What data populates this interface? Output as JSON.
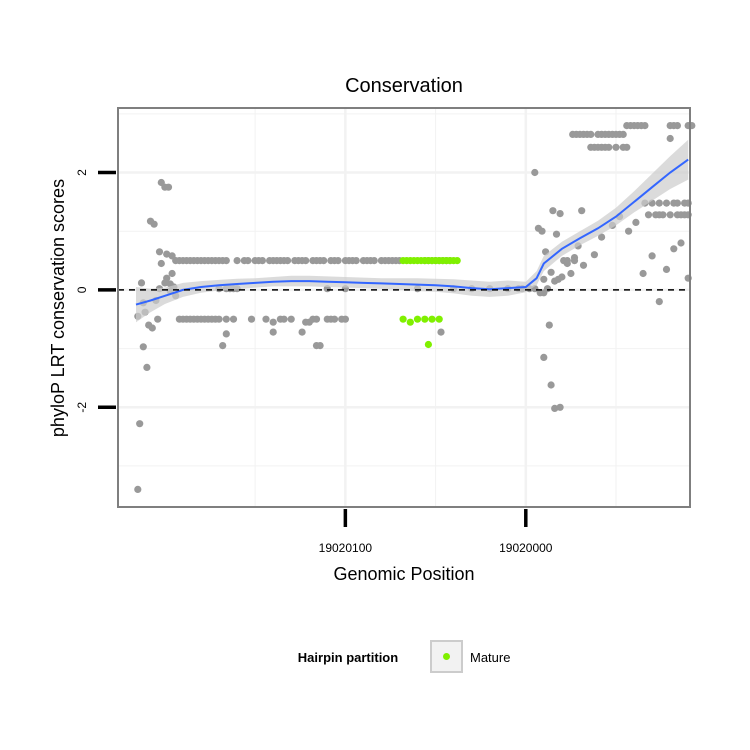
{
  "chart_data": {
    "type": "scatter",
    "title": "Conservation",
    "xlabel": "Genomic Position",
    "ylabel": "phyloP LRT conservation scores",
    "x_reversed": true,
    "xlim": [
      19020226,
      19019909
    ],
    "ylim": [
      -3.7,
      3.1
    ],
    "x_ticks": [
      19020100,
      19020000
    ],
    "x_tick_labels": [
      "19020100",
      "19020000"
    ],
    "y_ticks": [
      -2,
      0,
      2
    ],
    "y_tick_labels": [
      "-2",
      "0",
      "2"
    ],
    "reference_line": {
      "y": 0,
      "style": "dashed",
      "color": "#000000"
    },
    "grid": true,
    "legend": {
      "title": "Hairpin partition",
      "position": "bottom",
      "entries": [
        {
          "label": "Mature",
          "color": "#80f000"
        }
      ]
    },
    "colors": {
      "other_points": "#999999",
      "mature_points": "#80f000",
      "smooth_line": "#3366ff",
      "confidence_band": "#cccccc",
      "panel_border": "#7f7f7f",
      "grid": "#f2f2f2"
    },
    "series": [
      {
        "name": "",
        "color": "#999999",
        "points": [
          [
            19020215,
            -3.4
          ],
          [
            19020214,
            -2.28
          ],
          [
            19020212,
            -0.97
          ],
          [
            19020210,
            -1.32
          ],
          [
            19020215,
            -0.45
          ],
          [
            19020213,
            0.12
          ],
          [
            19020212,
            -0.22
          ],
          [
            19020211,
            -0.38
          ],
          [
            19020209,
            -0.6
          ],
          [
            19020208,
            1.17
          ],
          [
            19020207,
            -0.65
          ],
          [
            19020206,
            1.12
          ],
          [
            19020205,
            -0.18
          ],
          [
            19020204,
            -0.5
          ],
          [
            19020203,
            0.65
          ],
          [
            19020202,
            0.45
          ],
          [
            19020203,
            0.02
          ],
          [
            19020202,
            1.83
          ],
          [
            19020200,
            1.75
          ],
          [
            19020198,
            1.75
          ],
          [
            19020199,
            0.61
          ],
          [
            19020197,
            0.1
          ],
          [
            19020199,
            0.2
          ],
          [
            19020196,
            0.28
          ],
          [
            19020195,
            0.05
          ],
          [
            19020196,
            0.58
          ],
          [
            19020200,
            0.12
          ],
          [
            19020197,
            -0.02
          ],
          [
            19020194,
            -0.1
          ],
          [
            19020194,
            0.5
          ],
          [
            19020192,
            0.5
          ],
          [
            19020190,
            0.5
          ],
          [
            19020188,
            0.5
          ],
          [
            19020186,
            0.5
          ],
          [
            19020184,
            0.5
          ],
          [
            19020182,
            0.5
          ],
          [
            19020180,
            0.5
          ],
          [
            19020178,
            0.5
          ],
          [
            19020176,
            0.5
          ],
          [
            19020174,
            0.5
          ],
          [
            19020172,
            0.5
          ],
          [
            19020170,
            0.5
          ],
          [
            19020168,
            0.5
          ],
          [
            19020166,
            0.5
          ],
          [
            19020160,
            0.5
          ],
          [
            19020156,
            0.5
          ],
          [
            19020154,
            0.5
          ],
          [
            19020150,
            0.5
          ],
          [
            19020148,
            0.5
          ],
          [
            19020146,
            0.5
          ],
          [
            19020142,
            0.5
          ],
          [
            19020140,
            0.5
          ],
          [
            19020138,
            0.5
          ],
          [
            19020136,
            0.5
          ],
          [
            19020134,
            0.5
          ],
          [
            19020132,
            0.5
          ],
          [
            19020128,
            0.5
          ],
          [
            19020126,
            0.5
          ],
          [
            19020124,
            0.5
          ],
          [
            19020122,
            0.5
          ],
          [
            19020118,
            0.5
          ],
          [
            19020116,
            0.5
          ],
          [
            19020114,
            0.5
          ],
          [
            19020112,
            0.5
          ],
          [
            19020108,
            0.5
          ],
          [
            19020106,
            0.5
          ],
          [
            19020104,
            0.5
          ],
          [
            19020100,
            0.5
          ],
          [
            19020098,
            0.5
          ],
          [
            19020096,
            0.5
          ],
          [
            19020094,
            0.5
          ],
          [
            19020090,
            0.5
          ],
          [
            19020088,
            0.5
          ],
          [
            19020086,
            0.5
          ],
          [
            19020084,
            0.5
          ],
          [
            19020080,
            0.5
          ],
          [
            19020078,
            0.5
          ],
          [
            19020076,
            0.5
          ],
          [
            19020074,
            0.5
          ],
          [
            19020072,
            0.5
          ],
          [
            19020070,
            0.5
          ],
          [
            19020056,
            0.5
          ],
          [
            19020054,
            0.5
          ],
          [
            19020052,
            0.5
          ],
          [
            19020050,
            0.5
          ],
          [
            19020048,
            0.5
          ],
          [
            19020046,
            0.5
          ],
          [
            19020044,
            0.5
          ],
          [
            19020042,
            0.5
          ],
          [
            19020192,
            -0.5
          ],
          [
            19020190,
            -0.5
          ],
          [
            19020188,
            -0.5
          ],
          [
            19020186,
            -0.5
          ],
          [
            19020184,
            -0.5
          ],
          [
            19020182,
            -0.5
          ],
          [
            19020180,
            -0.5
          ],
          [
            19020178,
            -0.5
          ],
          [
            19020176,
            -0.5
          ],
          [
            19020174,
            -0.5
          ],
          [
            19020172,
            -0.5
          ],
          [
            19020170,
            -0.5
          ],
          [
            19020166,
            -0.5
          ],
          [
            19020162,
            -0.5
          ],
          [
            19020152,
            -0.5
          ],
          [
            19020144,
            -0.5
          ],
          [
            19020140,
            -0.55
          ],
          [
            19020136,
            -0.5
          ],
          [
            19020134,
            -0.5
          ],
          [
            19020130,
            -0.5
          ],
          [
            19020122,
            -0.55
          ],
          [
            19020120,
            -0.55
          ],
          [
            19020118,
            -0.5
          ],
          [
            19020116,
            -0.5
          ],
          [
            19020110,
            -0.5
          ],
          [
            19020108,
            -0.5
          ],
          [
            19020106,
            -0.5
          ],
          [
            19020102,
            -0.5
          ],
          [
            19020100,
            -0.5
          ],
          [
            19020166,
            -0.75
          ],
          [
            19020168,
            -0.95
          ],
          [
            19020140,
            -0.72
          ],
          [
            19020124,
            -0.72
          ],
          [
            19020116,
            -0.95
          ],
          [
            19020114,
            -0.95
          ],
          [
            19020047,
            -0.72
          ],
          [
            19020170,
            0.02
          ],
          [
            19020166,
            0.02
          ],
          [
            19020164,
            0.02
          ],
          [
            19020162,
            0.02
          ],
          [
            19020160,
            0.02
          ],
          [
            19020110,
            0.02
          ],
          [
            19020100,
            0.02
          ],
          [
            19020060,
            0.02
          ],
          [
            19020040,
            0.02
          ],
          [
            19020030,
            0.02
          ],
          [
            19020020,
            0.02
          ],
          [
            19020010,
            0.02
          ],
          [
            19020004,
            0.02
          ],
          [
            19020002,
            0.02
          ],
          [
            19019998,
            0.02
          ],
          [
            19019995,
            0.02
          ],
          [
            19019992,
            -0.05
          ],
          [
            19019990,
            -0.05
          ],
          [
            19019988,
            0.02
          ],
          [
            19019995,
            2.0
          ],
          [
            19019993,
            1.05
          ],
          [
            19019991,
            1.0
          ],
          [
            19019989,
            0.65
          ],
          [
            19019990,
            0.18
          ],
          [
            19019987,
            -0.6
          ],
          [
            19019985,
            1.35
          ],
          [
            19019983,
            0.95
          ],
          [
            19019981,
            1.3
          ],
          [
            19019979,
            0.5
          ],
          [
            19019977,
            0.45
          ],
          [
            19019975,
            0.28
          ],
          [
            19019973,
            0.55
          ],
          [
            19019971,
            0.75
          ],
          [
            19019969,
            1.35
          ],
          [
            19019990,
            -1.15
          ],
          [
            19019986,
            -1.62
          ],
          [
            19019984,
            -2.02
          ],
          [
            19019981,
            -2.0
          ],
          [
            19019986,
            0.3
          ],
          [
            19019984,
            0.15
          ],
          [
            19019982,
            0.18
          ],
          [
            19019980,
            0.22
          ],
          [
            19019977,
            0.5
          ],
          [
            19019973,
            0.5
          ],
          [
            19019968,
            0.42
          ],
          [
            19019962,
            0.6
          ],
          [
            19019958,
            0.9
          ],
          [
            19019952,
            1.1
          ],
          [
            19019948,
            1.25
          ],
          [
            19019943,
            1.0
          ],
          [
            19019939,
            1.15
          ],
          [
            19019935,
            0.28
          ],
          [
            19019930,
            0.58
          ],
          [
            19019926,
            -0.2
          ],
          [
            19019922,
            0.35
          ],
          [
            19019918,
            0.7
          ],
          [
            19019914,
            0.8
          ],
          [
            19019910,
            0.2
          ],
          [
            19019974,
            2.65
          ],
          [
            19019972,
            2.65
          ],
          [
            19019970,
            2.65
          ],
          [
            19019968,
            2.65
          ],
          [
            19019966,
            2.65
          ],
          [
            19019964,
            2.65
          ],
          [
            19019960,
            2.65
          ],
          [
            19019958,
            2.65
          ],
          [
            19019956,
            2.65
          ],
          [
            19019954,
            2.65
          ],
          [
            19019952,
            2.65
          ],
          [
            19019950,
            2.65
          ],
          [
            19019948,
            2.65
          ],
          [
            19019946,
            2.65
          ],
          [
            19019964,
            2.43
          ],
          [
            19019962,
            2.43
          ],
          [
            19019960,
            2.43
          ],
          [
            19019958,
            2.43
          ],
          [
            19019956,
            2.43
          ],
          [
            19019954,
            2.43
          ],
          [
            19019950,
            2.43
          ],
          [
            19019946,
            2.43
          ],
          [
            19019944,
            2.43
          ],
          [
            19019944,
            2.8
          ],
          [
            19019942,
            2.8
          ],
          [
            19019940,
            2.8
          ],
          [
            19019938,
            2.8
          ],
          [
            19019936,
            2.8
          ],
          [
            19019934,
            2.8
          ],
          [
            19019920,
            2.8
          ],
          [
            19019918,
            2.8
          ],
          [
            19019916,
            2.8
          ],
          [
            19019910,
            2.8
          ],
          [
            19019908,
            2.8
          ],
          [
            19019920,
            2.58
          ],
          [
            19019934,
            1.48
          ],
          [
            19019930,
            1.48
          ],
          [
            19019926,
            1.48
          ],
          [
            19019922,
            1.48
          ],
          [
            19019918,
            1.48
          ],
          [
            19019916,
            1.48
          ],
          [
            19019912,
            1.48
          ],
          [
            19019910,
            1.48
          ],
          [
            19019932,
            1.28
          ],
          [
            19019928,
            1.28
          ],
          [
            19019926,
            1.28
          ],
          [
            19019924,
            1.28
          ],
          [
            19019920,
            1.28
          ],
          [
            19019916,
            1.28
          ],
          [
            19019914,
            1.28
          ],
          [
            19019912,
            1.28
          ],
          [
            19019910,
            1.28
          ]
        ]
      },
      {
        "name": "Mature",
        "color": "#80f000",
        "points": [
          [
            19020068,
            0.5
          ],
          [
            19020066,
            0.5
          ],
          [
            19020064,
            0.5
          ],
          [
            19020062,
            0.5
          ],
          [
            19020060,
            0.5
          ],
          [
            19020058,
            0.5
          ],
          [
            19020056,
            0.5
          ],
          [
            19020054,
            0.5
          ],
          [
            19020052,
            0.5
          ],
          [
            19020050,
            0.5
          ],
          [
            19020048,
            0.5
          ],
          [
            19020046,
            0.5
          ],
          [
            19020044,
            0.5
          ],
          [
            19020042,
            0.5
          ],
          [
            19020040,
            0.5
          ],
          [
            19020038,
            0.5
          ],
          [
            19020068,
            -0.5
          ],
          [
            19020064,
            -0.55
          ],
          [
            19020060,
            -0.5
          ],
          [
            19020056,
            -0.5
          ],
          [
            19020052,
            -0.5
          ],
          [
            19020048,
            -0.5
          ],
          [
            19020054,
            -0.93
          ]
        ]
      }
    ],
    "smooth": {
      "type": "loess",
      "color": "#3366ff",
      "x": [
        19020216,
        19020208,
        19020200,
        19020190,
        19020180,
        19020170,
        19020160,
        19020150,
        19020140,
        19020130,
        19020120,
        19020110,
        19020100,
        19020090,
        19020080,
        19020070,
        19020060,
        19020050,
        19020040,
        19020030,
        19020020,
        19020010,
        19020000,
        19019994,
        19019990,
        19019980,
        19019970,
        19019960,
        19019950,
        19019940,
        19019930,
        19019920,
        19019910
      ],
      "y": [
        -0.25,
        -0.18,
        -0.1,
        0.0,
        0.05,
        0.08,
        0.1,
        0.12,
        0.14,
        0.15,
        0.15,
        0.14,
        0.13,
        0.12,
        0.11,
        0.1,
        0.09,
        0.08,
        0.06,
        0.03,
        0.01,
        0.03,
        0.05,
        0.2,
        0.45,
        0.7,
        0.88,
        1.05,
        1.25,
        1.5,
        1.75,
        2.0,
        2.22
      ],
      "lower": [
        -0.55,
        -0.38,
        -0.24,
        -0.12,
        -0.05,
        -0.01,
        0.01,
        0.04,
        0.06,
        0.06,
        0.06,
        0.05,
        0.04,
        0.03,
        0.02,
        0.0,
        -0.02,
        -0.03,
        -0.06,
        -0.1,
        -0.12,
        -0.1,
        -0.04,
        0.08,
        0.32,
        0.58,
        0.76,
        0.92,
        1.1,
        1.32,
        1.52,
        1.72,
        1.88
      ],
      "upper": [
        0.05,
        0.02,
        0.04,
        0.12,
        0.15,
        0.17,
        0.19,
        0.2,
        0.22,
        0.24,
        0.24,
        0.23,
        0.22,
        0.21,
        0.2,
        0.2,
        0.2,
        0.19,
        0.18,
        0.16,
        0.14,
        0.16,
        0.14,
        0.32,
        0.58,
        0.82,
        1.0,
        1.18,
        1.4,
        1.68,
        1.98,
        2.28,
        2.56
      ]
    }
  }
}
